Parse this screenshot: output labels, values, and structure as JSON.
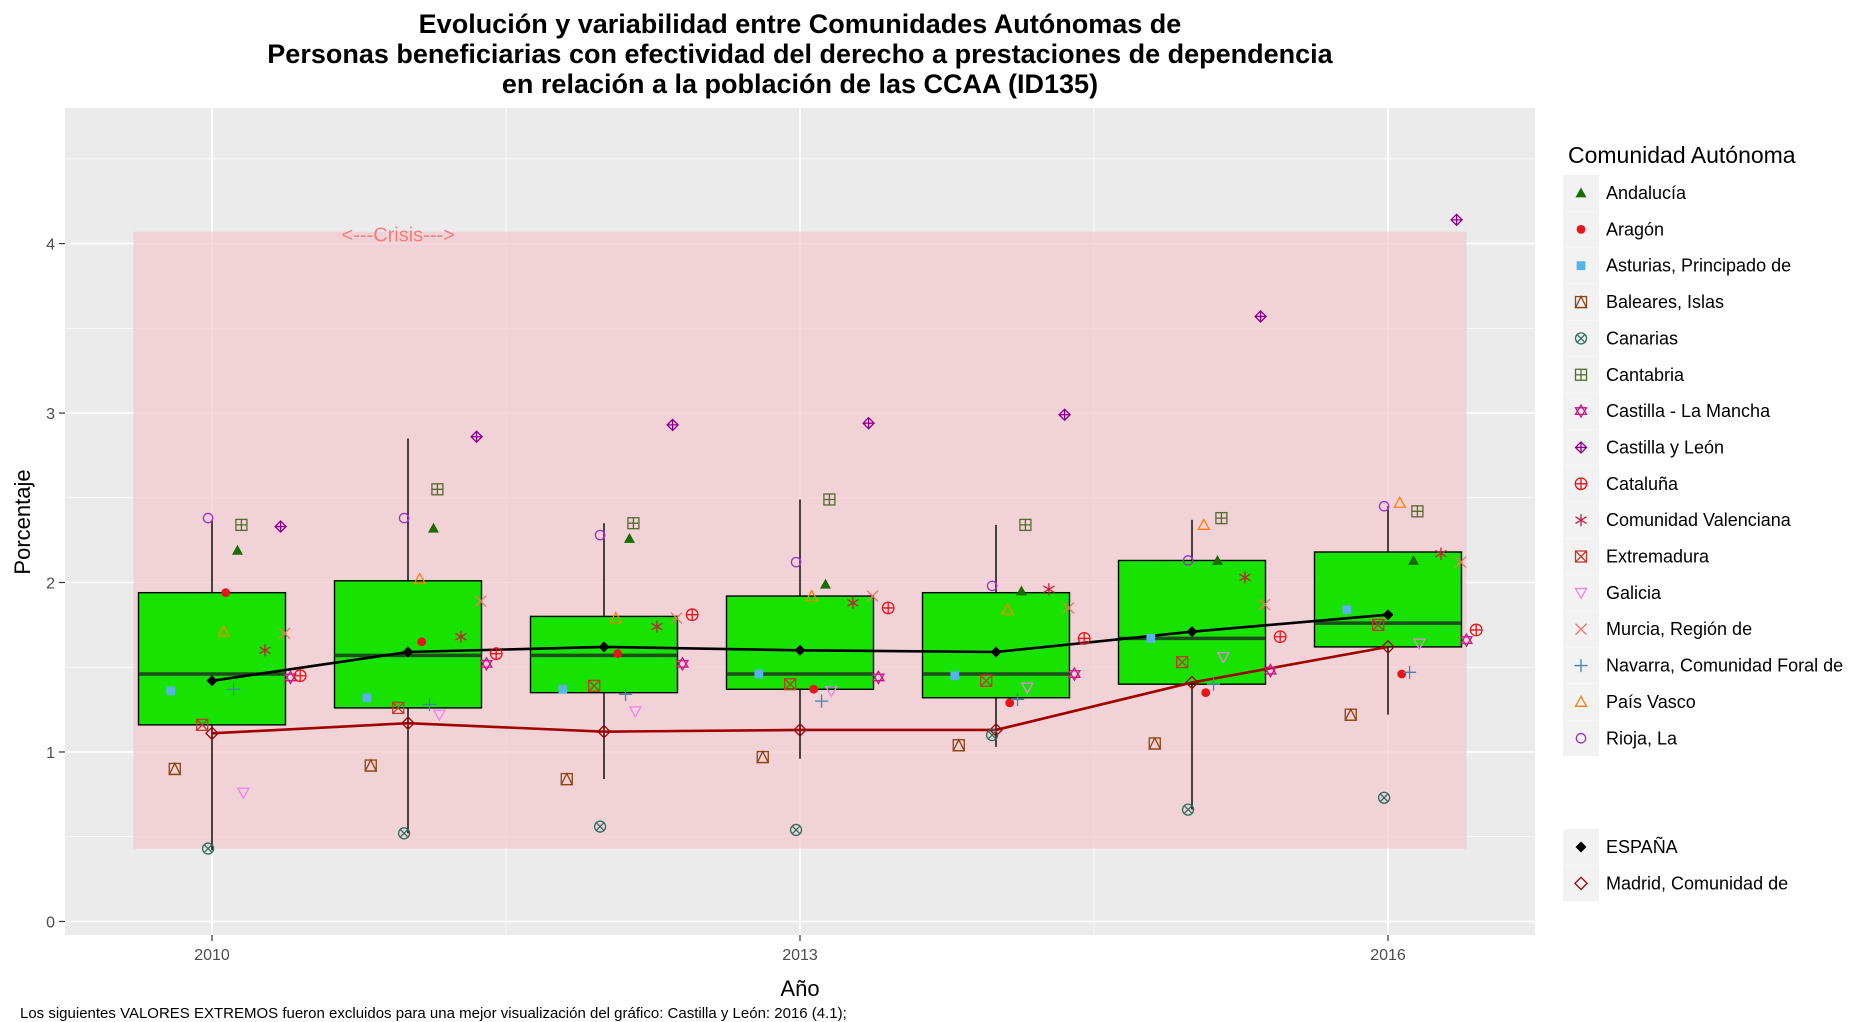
{
  "chart_data": {
    "type": "boxplot",
    "title_lines": [
      "Evolución y variabilidad entre Comunidades Autónomas de",
      "Personas beneficiarias con efectividad del derecho a prestaciones de dependencia",
      "en relación a la población de las CCAA (ID135)"
    ],
    "xlabel": "Año",
    "ylabel": "Porcentaje",
    "x_ticks": [
      2010,
      2013,
      2016
    ],
    "y_ticks": [
      0,
      1,
      2,
      3,
      4
    ],
    "xlim": [
      2009.25,
      2016.75
    ],
    "ylim": [
      -0.08,
      4.8
    ],
    "crisis_band": {
      "x": [
        2009.6,
        2016.4
      ],
      "y": [
        0.43,
        4.07
      ],
      "label": "<---Crisis--->",
      "color": "#f4c7cd"
    },
    "boxes": [
      {
        "year": 2010,
        "q1": 1.16,
        "median": 1.46,
        "q3": 1.94,
        "low": 0.42,
        "high": 2.37
      },
      {
        "year": 2011,
        "q1": 1.26,
        "median": 1.57,
        "q3": 2.01,
        "low": 0.52,
        "high": 2.85
      },
      {
        "year": 2012,
        "q1": 1.35,
        "median": 1.57,
        "q3": 1.8,
        "low": 0.84,
        "high": 2.35
      },
      {
        "year": 2013,
        "q1": 1.37,
        "median": 1.46,
        "q3": 1.92,
        "low": 0.96,
        "high": 2.49
      },
      {
        "year": 2014,
        "q1": 1.32,
        "median": 1.46,
        "q3": 1.94,
        "low": 1.03,
        "high": 2.34
      },
      {
        "year": 2015,
        "q1": 1.4,
        "median": 1.67,
        "q3": 2.13,
        "low": 0.66,
        "high": 2.37
      },
      {
        "year": 2016,
        "q1": 1.62,
        "median": 1.76,
        "q3": 2.18,
        "low": 1.22,
        "high": 2.45
      }
    ],
    "box_fill": "#17e200",
    "lines": [
      {
        "name": "ESPAÑA",
        "color": "#000000",
        "values": [
          1.42,
          1.59,
          1.62,
          1.6,
          1.59,
          1.71,
          1.81
        ]
      },
      {
        "name": "Madrid, Comunidad de",
        "color": "#a00000",
        "values": [
          1.11,
          1.17,
          1.12,
          1.13,
          1.13,
          1.41,
          1.62
        ]
      }
    ],
    "years": [
      2010,
      2011,
      2012,
      2013,
      2014,
      2015,
      2016
    ],
    "series": [
      {
        "name": "Andalucía",
        "shape": "triangle",
        "color": "#1a6b00",
        "offset": 0.13,
        "values": [
          2.19,
          2.32,
          2.26,
          1.99,
          1.95,
          2.13,
          2.13
        ]
      },
      {
        "name": "Aragón",
        "shape": "dot",
        "color": "#e8141c",
        "offset": 0.07,
        "values": [
          1.94,
          1.65,
          1.58,
          1.37,
          1.29,
          1.35,
          1.46
        ]
      },
      {
        "name": "Asturias, Principado de",
        "shape": "square",
        "color": "#56b4e9",
        "offset": -0.21,
        "values": [
          1.36,
          1.32,
          1.37,
          1.46,
          1.45,
          1.67,
          1.84
        ]
      },
      {
        "name": "Baleares, Islas",
        "shape": "square-triangle",
        "color": "#8b4513",
        "offset": -0.19,
        "values": [
          0.9,
          0.92,
          0.84,
          0.97,
          1.04,
          1.05,
          1.22
        ]
      },
      {
        "name": "Canarias",
        "shape": "circle-x",
        "color": "#2e6e5e",
        "offset": -0.02,
        "values": [
          0.43,
          0.52,
          0.56,
          0.54,
          1.1,
          0.66,
          0.73
        ]
      },
      {
        "name": "Cantabria",
        "shape": "square-plus",
        "color": "#556b2f",
        "offset": 0.15,
        "values": [
          2.34,
          2.55,
          2.35,
          2.49,
          2.34,
          2.38,
          2.42
        ]
      },
      {
        "name": "Castilla - La Mancha",
        "shape": "star-david",
        "color": "#c71585",
        "offset": 0.4,
        "values": [
          1.44,
          1.52,
          1.52,
          1.44,
          1.46,
          1.48,
          1.66
        ]
      },
      {
        "name": "Castilla y León",
        "shape": "diamond-plus",
        "color": "#8b008b",
        "offset": 0.35,
        "values": [
          2.33,
          2.86,
          2.93,
          2.94,
          2.99,
          3.57,
          4.14
        ]
      },
      {
        "name": "Cataluña",
        "shape": "circle-plus",
        "color": "#e8141c",
        "offset": 0.45,
        "values": [
          1.45,
          1.58,
          1.81,
          1.85,
          1.67,
          1.68,
          1.72
        ]
      },
      {
        "name": "Comunidad Valenciana",
        "shape": "asterisk",
        "color": "#c41e3a",
        "offset": 0.27,
        "values": [
          1.6,
          1.68,
          1.74,
          1.88,
          1.96,
          2.03,
          2.17
        ]
      },
      {
        "name": "Extremadura",
        "shape": "square-x",
        "color": "#c0392b",
        "offset": -0.05,
        "values": [
          1.16,
          1.26,
          1.39,
          1.4,
          1.42,
          1.53,
          1.75
        ]
      },
      {
        "name": "Galicia",
        "shape": "triangle-down",
        "color": "#ee82ee",
        "offset": 0.16,
        "values": [
          0.76,
          1.22,
          1.24,
          1.36,
          1.38,
          1.56,
          1.64
        ]
      },
      {
        "name": "Murcia, Región de",
        "shape": "x",
        "color": "#ff6f61",
        "offset": 0.37,
        "values": [
          1.7,
          1.89,
          1.79,
          1.92,
          1.85,
          1.87,
          2.12
        ]
      },
      {
        "name": "Navarra, Comunidad Foral de",
        "shape": "plus",
        "color": "#4682b4",
        "offset": 0.11,
        "values": [
          1.37,
          1.28,
          1.34,
          1.3,
          1.31,
          1.4,
          1.47
        ]
      },
      {
        "name": "País Vasco",
        "shape": "triangle-open",
        "color": "#ff7f0e",
        "offset": 0.06,
        "values": [
          1.71,
          2.02,
          1.79,
          1.92,
          1.84,
          2.34,
          2.47
        ]
      },
      {
        "name": "Rioja, La",
        "shape": "circle",
        "color": "#9932cc",
        "offset": -0.02,
        "values": [
          2.38,
          2.38,
          2.28,
          2.12,
          1.98,
          2.13,
          2.45
        ]
      }
    ],
    "legend_title": "Comunidad Autónoma",
    "legend_position": "right",
    "caption": "Los siguientes VALORES EXTREMOS fueron excluidos para una mejor visualización del gráfico: Castilla y León: 2016 (4.1);"
  }
}
